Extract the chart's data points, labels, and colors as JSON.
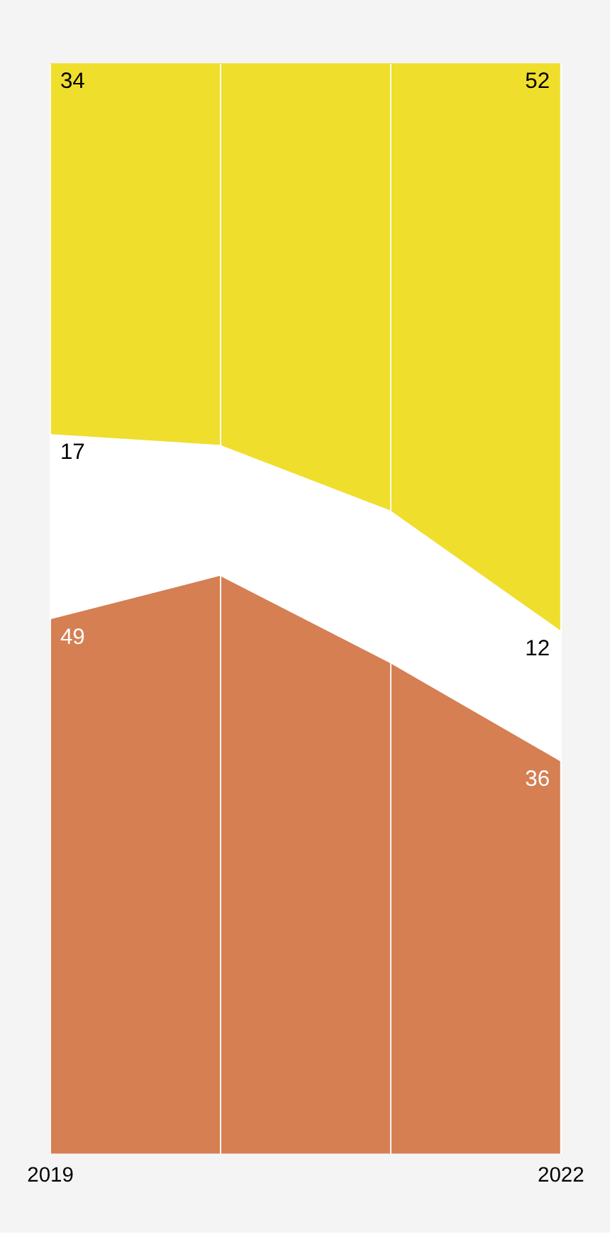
{
  "chart_data": {
    "type": "area",
    "stacked": true,
    "categories": [
      "2019",
      null,
      null,
      "2022"
    ],
    "series": [
      {
        "color": "#d57f53",
        "values": [
          49,
          53,
          45,
          36
        ],
        "value_labels": [
          "49",
          null,
          null,
          "36"
        ]
      },
      {
        "color": "#ffffff",
        "values": [
          17,
          12,
          14,
          12
        ],
        "value_labels": [
          "17",
          null,
          null,
          "12"
        ]
      },
      {
        "color": "#f0de2c",
        "values": [
          34,
          35,
          41,
          52
        ],
        "value_labels": [
          "34",
          null,
          null,
          "52"
        ]
      }
    ],
    "grid": "x",
    "legend": false
  }
}
